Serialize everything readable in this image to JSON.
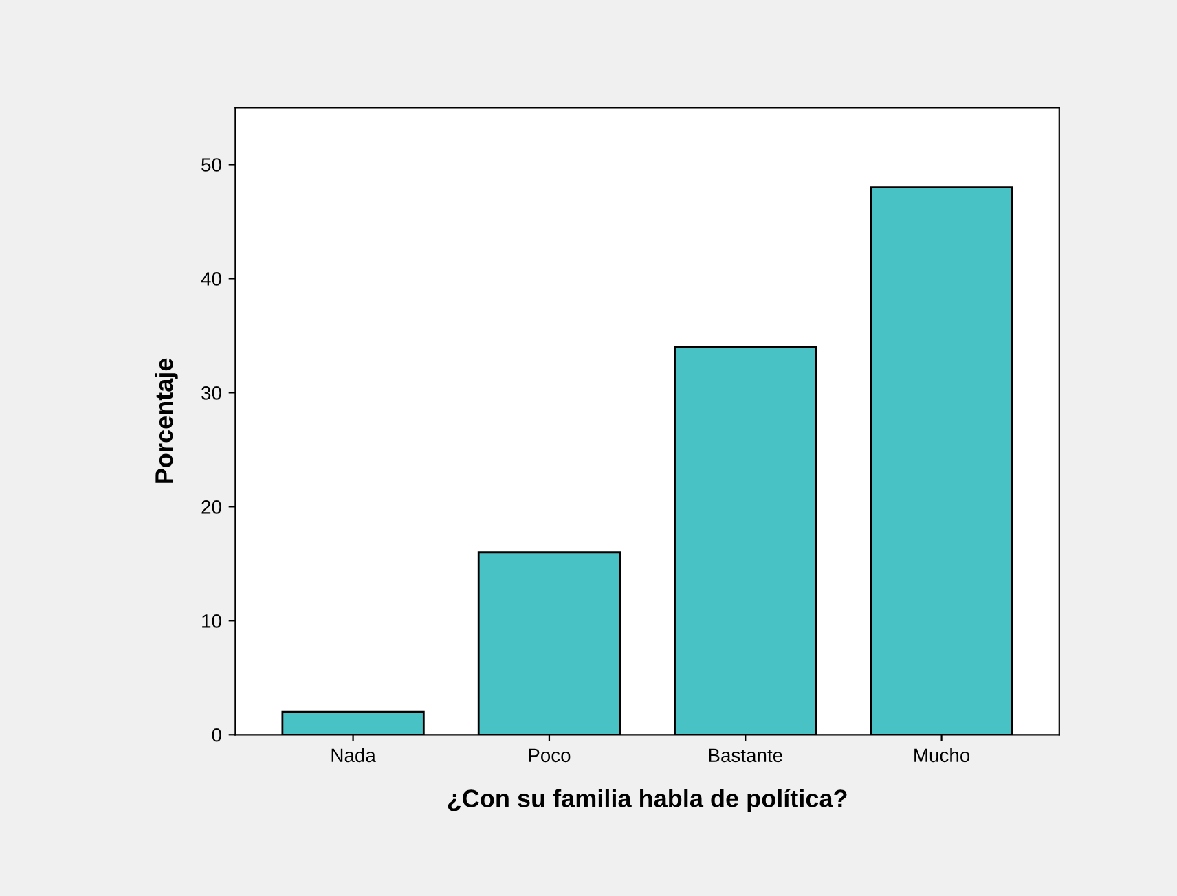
{
  "chart_data": {
    "type": "bar",
    "xlabel": "¿Con su familia habla de política?",
    "ylabel": "Porcentaje",
    "categories": [
      "Nada",
      "Poco",
      "Bastante",
      "Mucho"
    ],
    "values": [
      2.0,
      16.0,
      34.0,
      48.0
    ],
    "color": "#48c2c5",
    "ylim": [
      0,
      55
    ],
    "yticks": [
      0,
      10,
      20,
      30,
      40,
      50
    ],
    "grid": false,
    "legend": false
  }
}
